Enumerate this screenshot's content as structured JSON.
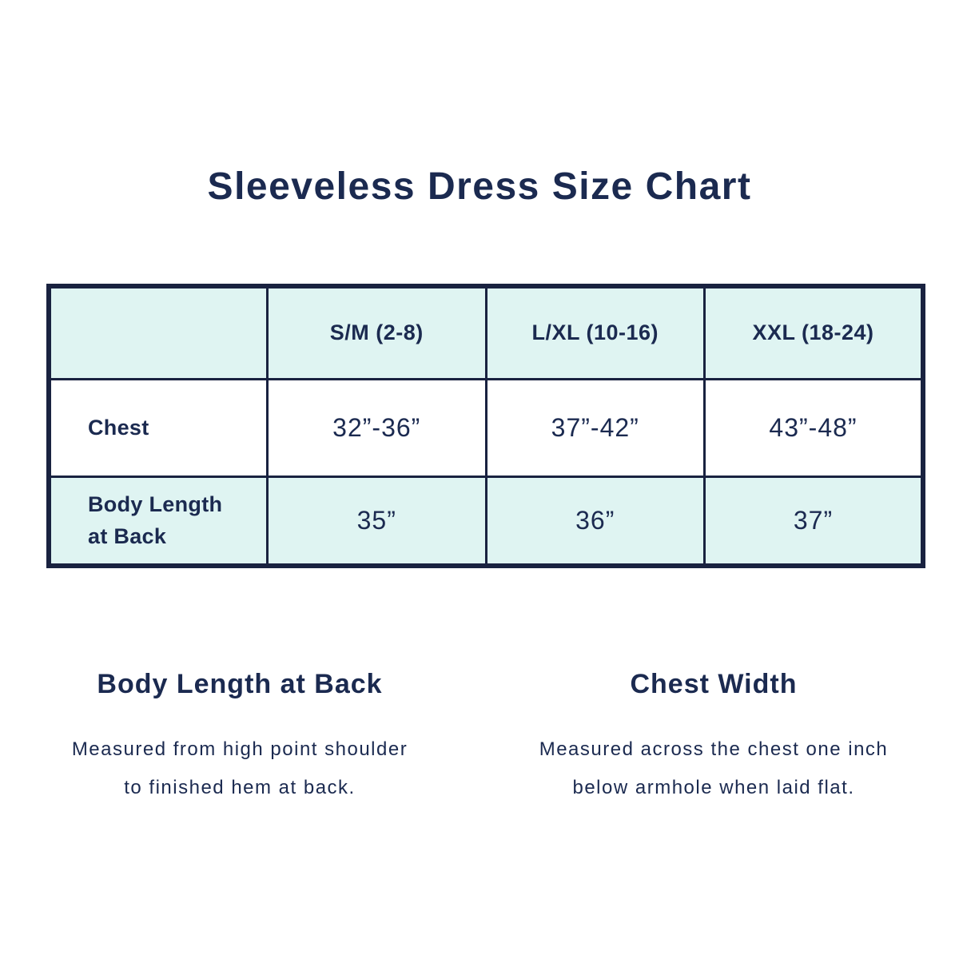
{
  "page": {
    "title": "Sleeveless Dress Size Chart"
  },
  "table": {
    "columns": [
      "",
      "S/M (2-8)",
      "L/XL (10-16)",
      "XXL (18-24)"
    ],
    "rows": [
      {
        "label": "Chest",
        "values": [
          "32”-36”",
          "37”-42”",
          "43”-48”"
        ]
      },
      {
        "label": "Body Length at Back",
        "values": [
          "35”",
          "36”",
          "37”"
        ]
      }
    ]
  },
  "notes": [
    {
      "heading": "Body Length at Back",
      "line1": "Measured from high point shoulder",
      "line2": "to finished hem at back."
    },
    {
      "heading": "Chest Width",
      "line1": "Measured across the chest one inch",
      "line2": "below armhole when laid flat."
    }
  ],
  "colors": {
    "text_navy": "#1B2A50",
    "border_navy": "#192240",
    "mint": "#DFF4F2",
    "background": "#FFFFFF"
  }
}
